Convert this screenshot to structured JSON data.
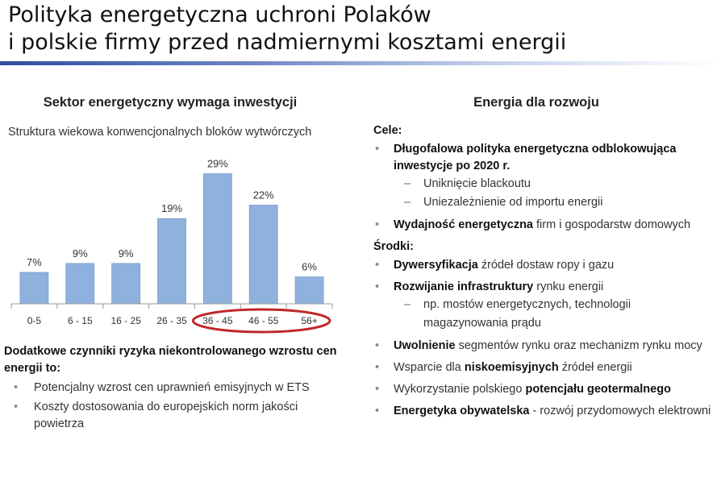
{
  "title": {
    "line1": "Polityka energetyczna uchroni Polaków",
    "line2": "i polskie firmy przed nadmiernymi kosztami energii"
  },
  "left": {
    "heading": "Sektor energetyczny wymaga inwestycji",
    "chart_caption": "Struktura wiekowa konwencjonalnych bloków wytwórczych"
  },
  "chart_data": {
    "type": "bar",
    "title": "Struktura wiekowa konwencjonalnych bloków wytwórczych",
    "categories": [
      "0-5",
      "6 - 15",
      "16 - 25",
      "26 - 35",
      "36 - 45",
      "46 - 55",
      "56+"
    ],
    "values": [
      7,
      9,
      9,
      19,
      29,
      22,
      6
    ],
    "data_labels": [
      "7%",
      "9%",
      "9%",
      "19%",
      "29%",
      "22%",
      "6%"
    ],
    "ylim": [
      0,
      30
    ],
    "grid": false,
    "bar_color": "#8eb1de",
    "bar_border_color": "#7a9dcc",
    "highlight_color": "#c0282a",
    "highlighted_categories": [
      "36 - 45",
      "46 - 55",
      "56+"
    ]
  },
  "risks": {
    "title": "Dodatkowe czynniki ryzyka niekontrolowanego wzrostu cen energii to:",
    "items": [
      "Potencjalny wzrost cen uprawnień emisyjnych w ETS",
      "Koszty dostosowania do europejskich norm jakości powietrza"
    ]
  },
  "right": {
    "heading": "Energia dla rozwoju",
    "goals_label": "Cele:",
    "goal1": {
      "bold": "Długofalowa polityka energetyczna odblokowująca inwestycje po 2020 r.",
      "subs": [
        "Uniknięcie blackoutu",
        "Uniezależnienie od importu energii"
      ]
    },
    "goal2": {
      "bold": "Wydajność energetyczna",
      "rest": " firm i gospodarstw domowych"
    },
    "means_label": "Środki:",
    "m1": {
      "bold": "Dywersyfikacja",
      "rest": " źródeł dostaw ropy i gazu"
    },
    "m2": {
      "bold": "Rozwijanie infrastruktury",
      "rest": " rynku energii",
      "sub": "np. mostów energetycznych, technologii magazynowania prądu"
    },
    "m3": {
      "bold": "Uwolnienie",
      "rest": " segmentów rynku oraz mechanizm rynku mocy"
    },
    "m4": {
      "pre": "Wsparcie dla ",
      "bold": "niskoemisyjnych",
      "rest": " źródeł energii"
    },
    "m5": {
      "pre": "Wykorzystanie polskiego ",
      "bold": "potencjału geotermalnego"
    },
    "m6": {
      "bold": "Energetyka obywatelska",
      "rest": " - rozwój przydomowych elektrowni"
    }
  },
  "colors": {
    "title_rule": "#2f4ea0",
    "bar": "#8eb1de",
    "highlight_ellipse": "#c0282a"
  }
}
